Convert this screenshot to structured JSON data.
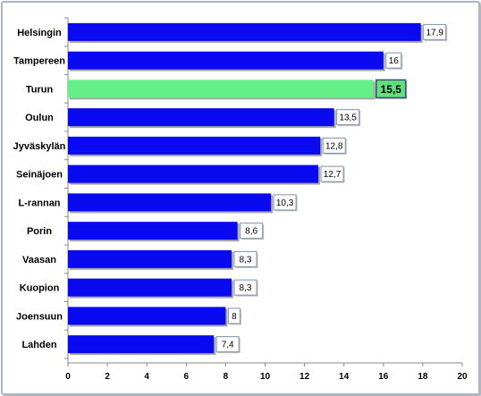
{
  "chart_data": {
    "type": "bar",
    "orientation": "horizontal",
    "categories": [
      "Helsingin",
      "Tampereen",
      "Turun",
      "Oulun",
      "Jyväskylän",
      "Seinäjoen",
      "L-rannan",
      "Porin",
      "Vaasan",
      "Kuopion",
      "Joensuun",
      "Lahden"
    ],
    "values": [
      17.9,
      16,
      15.5,
      13.5,
      12.8,
      12.7,
      10.3,
      8.6,
      8.3,
      8.3,
      8,
      7.4
    ],
    "data_labels": [
      "17,9",
      "16",
      "15,5",
      "13,5",
      "12,8",
      "12,7",
      "10,3",
      "8,6",
      "8,3",
      "8,3",
      "8",
      "7,4"
    ],
    "highlight_category": "Turun",
    "xlim": [
      0,
      20
    ],
    "xticks": [
      0,
      2,
      4,
      6,
      8,
      10,
      12,
      14,
      16,
      18,
      20
    ],
    "xtick_labels": [
      "0",
      "2",
      "4",
      "6",
      "8",
      "10",
      "12",
      "14",
      "16",
      "18",
      "20"
    ],
    "grid": false,
    "title": "",
    "xlabel": "",
    "ylabel": "",
    "colors": {
      "bar": "#0a0af0",
      "highlight": "#66ee88",
      "label_border": "#7f93a8",
      "highlight_label_bg": "#5fe07a"
    }
  }
}
